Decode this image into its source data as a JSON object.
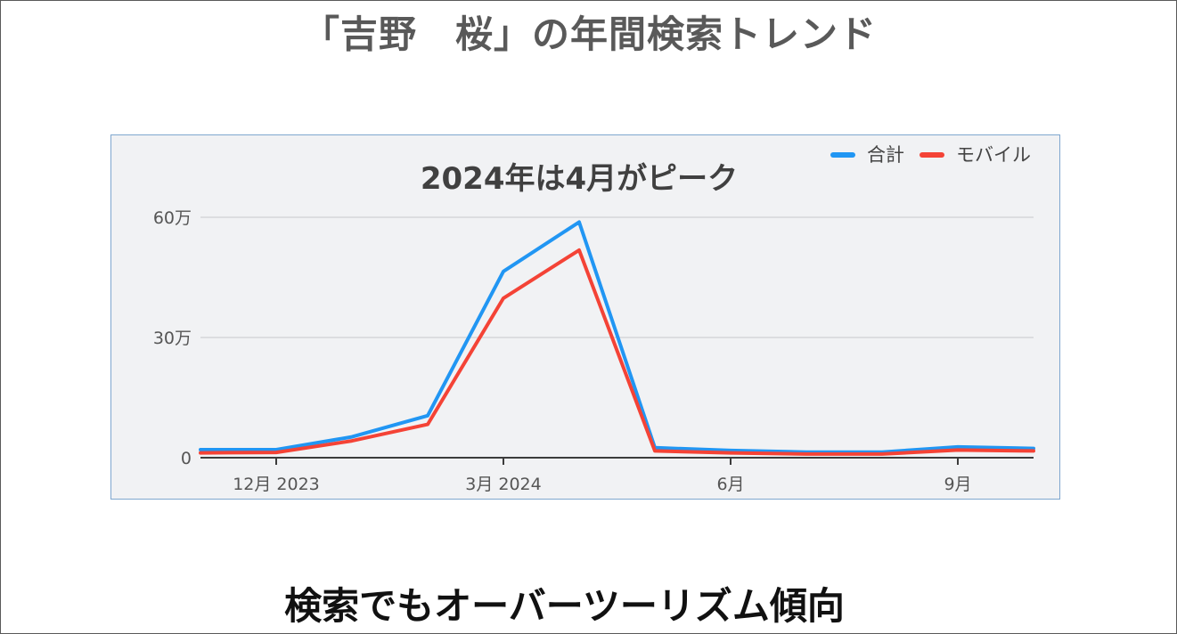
{
  "page": {
    "title": "「吉野　桜」の年間検索トレンド",
    "caption": "検索でもオーバーツーリズム傾向"
  },
  "chart_data": {
    "type": "line",
    "title": "2024年は4月がピーク",
    "xlabel": "",
    "ylabel": "",
    "x": [
      "2023-11",
      "2023-12",
      "2024-01",
      "2024-02",
      "2024-03",
      "2024-04",
      "2024-05",
      "2024-06",
      "2024-07",
      "2024-08",
      "2024-09",
      "2024-10"
    ],
    "x_ticks": [
      {
        "at": "2023-12",
        "label": "12月 2023"
      },
      {
        "at": "2024-03",
        "label": "3月 2024"
      },
      {
        "at": "2024-06",
        "label": "6月"
      },
      {
        "at": "2024-09",
        "label": "9月"
      }
    ],
    "y_ticks": [
      {
        "value": 0,
        "label": "0"
      },
      {
        "value": 300000,
        "label": "30万"
      },
      {
        "value": 600000,
        "label": "60万"
      }
    ],
    "ylim": [
      0,
      600000
    ],
    "grid": true,
    "legend_position": "top-right",
    "series": [
      {
        "name": "合計",
        "color": "#2196f3",
        "values": [
          20000,
          20000,
          52000,
          105000,
          465000,
          588000,
          25000,
          18000,
          14000,
          14000,
          27000,
          23000
        ]
      },
      {
        "name": "モバイル",
        "color": "#f44336",
        "values": [
          12000,
          13000,
          42000,
          83000,
          398000,
          518000,
          17000,
          12000,
          9000,
          9000,
          19000,
          17000
        ]
      }
    ]
  }
}
